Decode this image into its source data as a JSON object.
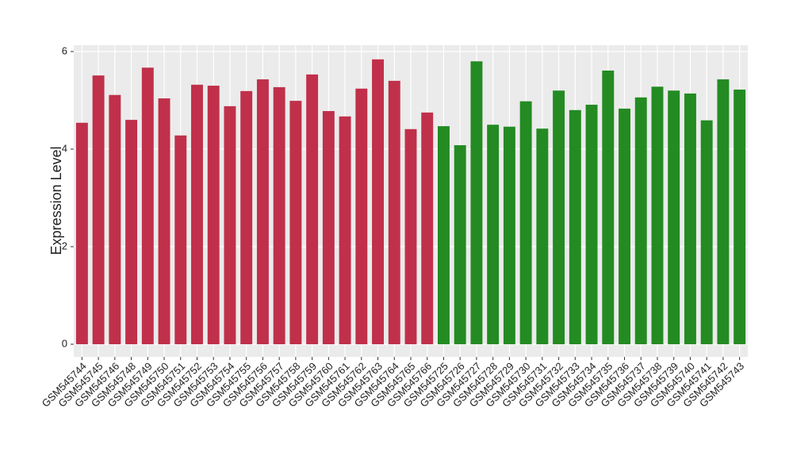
{
  "chart_data": {
    "type": "bar",
    "y_label": "Expression Level",
    "categories": [
      "GSM545744",
      "GSM545745",
      "GSM545746",
      "GSM545748",
      "GSM545749",
      "GSM545750",
      "GSM545751",
      "GSM545752",
      "GSM545753",
      "GSM545754",
      "GSM545755",
      "GSM545756",
      "GSM545757",
      "GSM545758",
      "GSM545759",
      "GSM545760",
      "GSM545761",
      "GSM545762",
      "GSM545763",
      "GSM545764",
      "GSM545765",
      "GSM545766",
      "GSM545725",
      "GSM545726",
      "GSM545727",
      "GSM545728",
      "GSM545729",
      "GSM545730",
      "GSM545731",
      "GSM545732",
      "GSM545733",
      "GSM545734",
      "GSM545735",
      "GSM545736",
      "GSM545737",
      "GSM545738",
      "GSM545739",
      "GSM545740",
      "GSM545741",
      "GSM545742",
      "GSM545743"
    ],
    "values": [
      4.54,
      5.51,
      5.11,
      4.6,
      5.67,
      5.04,
      4.28,
      5.32,
      5.3,
      4.88,
      5.19,
      5.43,
      5.27,
      4.99,
      5.53,
      4.78,
      4.67,
      5.24,
      5.84,
      5.4,
      4.41,
      4.75,
      4.47,
      4.08,
      5.8,
      4.5,
      4.46,
      4.98,
      4.42,
      5.2,
      4.8,
      4.91,
      5.61,
      4.83,
      5.06,
      5.28,
      5.2,
      5.14,
      4.59,
      5.43,
      5.22
    ],
    "colors": [
      "#c0304a",
      "#c0304a",
      "#c0304a",
      "#c0304a",
      "#c0304a",
      "#c0304a",
      "#c0304a",
      "#c0304a",
      "#c0304a",
      "#c0304a",
      "#c0304a",
      "#c0304a",
      "#c0304a",
      "#c0304a",
      "#c0304a",
      "#c0304a",
      "#c0304a",
      "#c0304a",
      "#c0304a",
      "#c0304a",
      "#c0304a",
      "#c0304a",
      "#238b22",
      "#238b22",
      "#238b22",
      "#238b22",
      "#238b22",
      "#238b22",
      "#238b22",
      "#238b22",
      "#238b22",
      "#238b22",
      "#238b22",
      "#238b22",
      "#238b22",
      "#238b22",
      "#238b22",
      "#238b22",
      "#238b22",
      "#238b22",
      "#238b22"
    ],
    "ylim": [
      -0.26,
      6.13
    ],
    "yticks": [
      0,
      2,
      4,
      6
    ],
    "grid": true
  }
}
